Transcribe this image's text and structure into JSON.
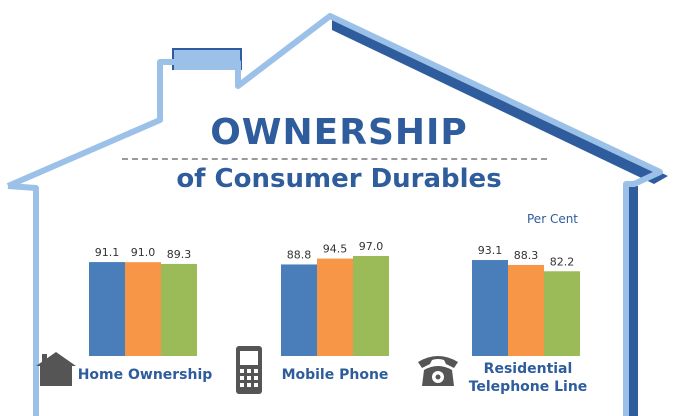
{
  "title": {
    "main": "OWNERSHIP",
    "sub": "of Consumer Durables"
  },
  "unit_label": "Per Cent",
  "colors": {
    "series1": "#4a7ebb",
    "series2": "#f79646",
    "series3": "#9bbb59",
    "house": "#9cc1e8",
    "house_dark": "#2e5c9c"
  },
  "icons": [
    "house-icon",
    "mobile-phone-icon",
    "telephone-icon"
  ],
  "chart_data": {
    "type": "bar",
    "categories": [
      "Home Ownership",
      "Mobile Phone",
      "Residential Telephone Line"
    ],
    "series": [
      {
        "values": [
          91.1,
          88.8,
          93.1
        ]
      },
      {
        "values": [
          91.0,
          94.5,
          88.3
        ]
      },
      {
        "values": [
          89.3,
          97.0,
          82.2
        ]
      }
    ],
    "data_labels": [
      [
        "91.1",
        "91.0",
        "89.3"
      ],
      [
        "88.8",
        "94.5",
        "97.0"
      ],
      [
        "93.1",
        "88.3",
        "82.2"
      ]
    ],
    "category_labels": [
      [
        "Home Ownership"
      ],
      [
        "Mobile Phone"
      ],
      [
        "Residential",
        "Telephone Line"
      ]
    ],
    "ylabel": "Per Cent",
    "grid": false,
    "legend": "none"
  }
}
